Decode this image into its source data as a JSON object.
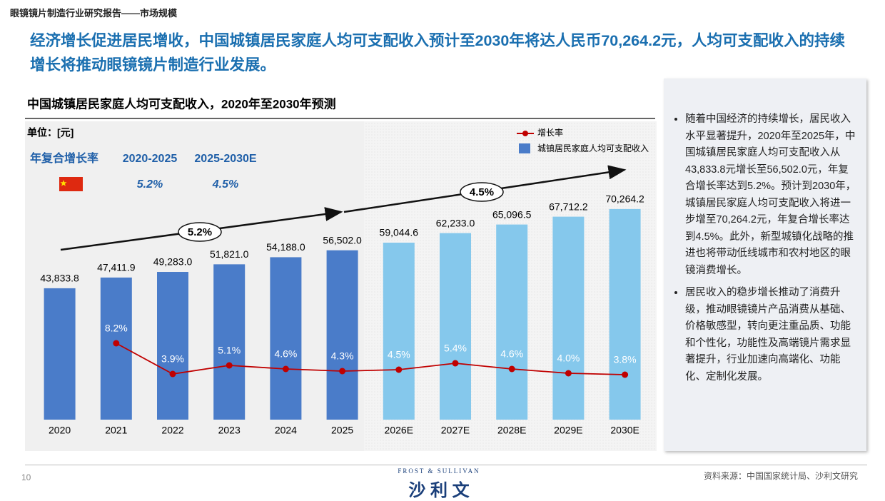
{
  "header": {
    "section": "眼镜镜片制造行业研究报告——市场规模",
    "headline": "经济增长促进居民增收，中国城镇居民家庭人均可支配收入预计至2030年将达人民币70,264.2元，人均可支配收入的持续增长将推动眼镜镜片制造行业发展。"
  },
  "chart_data": {
    "type": "bar",
    "title": "中国城镇居民家庭人均可支配收入，2020年至2030年预测",
    "unit": "单位：[元]",
    "categories": [
      "2020",
      "2021",
      "2022",
      "2023",
      "2024",
      "2025",
      "2026E",
      "2027E",
      "2028E",
      "2029E",
      "2030E"
    ],
    "series": [
      {
        "name": "城镇居民家庭人均可支配收入",
        "type": "bar",
        "color": "#4a7cc9",
        "forecast_color": "#85c8ec",
        "values": [
          43833.8,
          47411.9,
          49283.0,
          51821.0,
          54188.0,
          56502.0,
          59044.6,
          62233.0,
          65096.5,
          67712.2,
          70264.2
        ],
        "value_labels": [
          "43,833.8",
          "47,411.9",
          "49,283.0",
          "51,821.0",
          "54,188.0",
          "56,502.0",
          "59,044.6",
          "62,233.0",
          "65,096.5",
          "67,712.2",
          "70,264.2"
        ]
      },
      {
        "name": "增长率",
        "type": "line",
        "axis": "y2",
        "color": "#c00000",
        "values": [
          null,
          8.2,
          3.9,
          5.1,
          4.6,
          4.3,
          4.5,
          5.4,
          4.6,
          4.0,
          3.8
        ],
        "value_labels": [
          null,
          "8.2%",
          "3.9%",
          "5.1%",
          "4.6%",
          "4.3%",
          "4.5%",
          "5.4%",
          "4.6%",
          "4.0%",
          "3.8%"
        ]
      }
    ],
    "ylim": [
      0,
      100000
    ],
    "y2lim": [
      -2.5,
      39.5
    ],
    "cagr": {
      "title": "年复合增长率",
      "periods": [
        {
          "period": "2020-2025",
          "value": 5.2,
          "label": "5.2%"
        },
        {
          "period": "2025-2030E",
          "value": 4.5,
          "label": "4.5%"
        }
      ]
    }
  },
  "sidebar": [
    "随着中国经济的持续增长，居民收入水平显著提升，2020年至2025年，中国城镇居民家庭人均可支配收入从43,833.8元增长至56,502.0元，年复合增长率达到5.2%。预计到2030年，城镇居民家庭人均可支配收入将进一步增至70,264.2元，年复合增长率达到4.5%。此外，新型城镇化战略的推进也将带动低线城市和农村地区的眼镜消费增长。",
    "居民收入的稳步增长推动了消费升级，推动眼镜镜片产品消费从基础、价格敏感型，转向更注重品质、功能和个性化，功能性及高端镜片需求显著提升，行业加速向高端化、功能化、定制化发展。"
  ],
  "footer": {
    "page": "10",
    "brand_en": "FROST & SULLIVAN",
    "brand_cn": "沙 利 文",
    "source": "资料来源：中国国家统计局、沙利文研究"
  }
}
